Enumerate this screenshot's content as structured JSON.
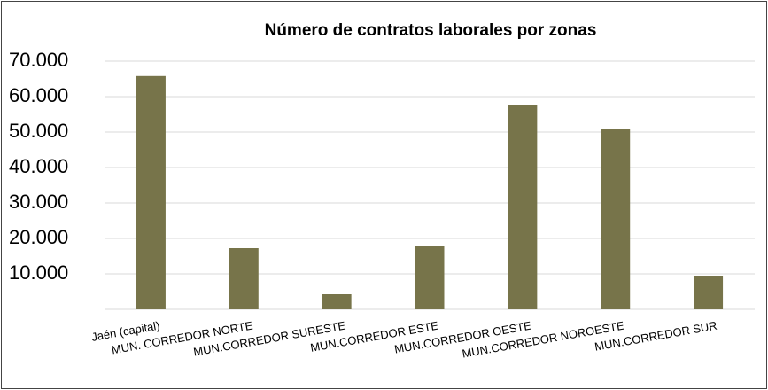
{
  "chart_data": {
    "type": "bar",
    "title": "Número de contratos laborales por zonas",
    "categories": [
      "Jaén (capital)",
      "MUN. CORREDOR NORTE",
      "MUN.CORREDOR SURESTE",
      "MUN.CORREDOR ESTE",
      "MUN.CORREDOR OESTE",
      "MUN.CORREDOR NOROESTE",
      "MUN.CORREDOR SUR"
    ],
    "values": [
      65800,
      17250,
      4250,
      18000,
      57500,
      51000,
      9500
    ],
    "color": "#77744a",
    "ylim": [
      0,
      70000
    ],
    "yticks": [
      {
        "value": 10000,
        "label": "10.000"
      },
      {
        "value": 20000,
        "label": "20.000"
      },
      {
        "value": 30000,
        "label": "30.000"
      },
      {
        "value": 40000,
        "label": "40.000"
      },
      {
        "value": 50000,
        "label": "50.000"
      },
      {
        "value": 60000,
        "label": "60.000"
      },
      {
        "value": 70000,
        "label": "70.000"
      }
    ],
    "grid": true
  }
}
